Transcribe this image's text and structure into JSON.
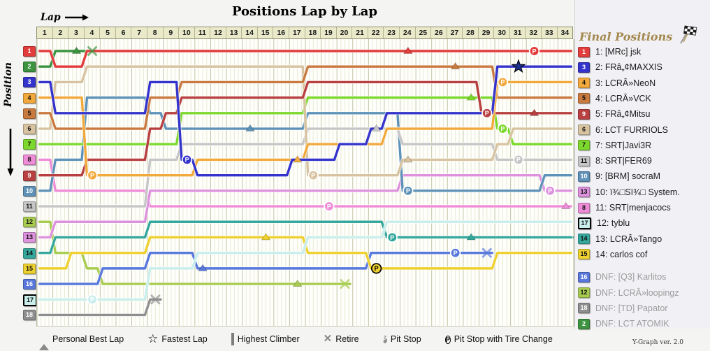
{
  "title": "Positions Lap by Lap",
  "watermark": "Y-Graph ver. 2.0",
  "axis": {
    "lap_label": "Lap",
    "position_label": "Position",
    "laps": [
      1,
      2,
      3,
      4,
      5,
      6,
      7,
      8,
      9,
      10,
      11,
      12,
      13,
      14,
      15,
      16,
      17,
      18,
      19,
      20,
      21,
      22,
      23,
      24,
      25,
      26,
      27,
      28,
      29,
      30,
      31,
      32,
      33,
      34
    ],
    "position_count": 18
  },
  "final_positions_header": "Final Positions",
  "legend": [
    {
      "icon": "personal-best-icon",
      "label": "Personal Best Lap"
    },
    {
      "icon": "fastest-lap-icon",
      "label": "Fastest Lap"
    },
    {
      "icon": "highest-climber-icon",
      "label": "Highest Climber"
    },
    {
      "icon": "retire-icon",
      "label": "Retire"
    },
    {
      "icon": "pit-stop-icon",
      "label": "Pit Stop"
    },
    {
      "icon": "pit-stop-tire-icon",
      "label": "Pit Stop with Tire Change"
    }
  ],
  "chart_data": {
    "type": "line",
    "x_label": "Lap",
    "y_label": "Position",
    "x_range": [
      1,
      34
    ],
    "y_range": [
      1,
      18
    ],
    "grid": true,
    "series": [
      {
        "key": "dg",
        "name": "[TD] Papator",
        "color": "#8f8f8f",
        "start": 18,
        "result": "DNF",
        "text_dark": false,
        "laps": [
          18,
          18,
          18,
          18,
          18,
          18,
          18,
          17
        ],
        "retire": [
          8,
          17
        ]
      },
      {
        "key": "yg",
        "name": "LCRÂ»loopingz",
        "color": "#a8cc50",
        "start": 12,
        "result": "DNF",
        "text_dark": true,
        "laps": [
          12,
          14,
          14,
          15,
          16,
          16,
          16,
          16,
          16,
          16,
          16,
          16,
          16,
          16,
          16,
          16,
          16,
          16,
          16,
          16
        ],
        "pb": [
          [
            17,
            16
          ]
        ],
        "retire": [
          20,
          16
        ]
      },
      {
        "key": "bv",
        "name": "[Q3] Karlitos",
        "color": "#5878dc",
        "start": 16,
        "result": "DNF",
        "text_dark": false,
        "laps": [
          16,
          16,
          16,
          16,
          15,
          15,
          15,
          14,
          14,
          14,
          15,
          15,
          15,
          15,
          15,
          15,
          15,
          15,
          15,
          15,
          15,
          14,
          14,
          14,
          14,
          14,
          14,
          14,
          14
        ],
        "pb": [
          [
            11,
            15
          ]
        ],
        "pit": [
          [
            27,
            14
          ]
        ],
        "retire": [
          29,
          14
        ]
      },
      {
        "key": "grn",
        "name": "LCT ATOMIK",
        "color": "#3c9440",
        "start": 2,
        "result": "DNF",
        "text_dark": false,
        "laps": [
          2,
          1,
          1,
          1
        ],
        "pb": [
          [
            3,
            1
          ]
        ],
        "retire": [
          4,
          1
        ]
      },
      {
        "key": "yel",
        "name": "carlos cof",
        "color": "#eed02f",
        "start": 15,
        "result": "14",
        "text_dark": true,
        "laps": [
          15,
          15,
          14,
          14,
          14,
          14,
          14,
          13,
          13,
          13,
          13,
          13,
          13,
          13,
          13,
          13,
          13,
          14,
          14,
          14,
          14,
          15,
          15,
          15,
          15,
          15,
          15,
          15,
          15,
          14,
          14,
          14,
          14,
          14
        ],
        "pb": [
          [
            15,
            13
          ]
        ],
        "tire": [
          [
            22,
            15
          ]
        ],
        "dashed_from": 31
      },
      {
        "key": "teal",
        "name": "LCRÂ»Tango",
        "color": "#34a89c",
        "start": 14,
        "result": "13",
        "text_dark": true,
        "laps": [
          14,
          13,
          13,
          13,
          13,
          13,
          13,
          12,
          12,
          12,
          12,
          12,
          12,
          12,
          12,
          12,
          12,
          12,
          12,
          12,
          12,
          12,
          13,
          13,
          13,
          13,
          13,
          13,
          13,
          13,
          13,
          13,
          13,
          13
        ],
        "pb": [
          [
            28,
            13
          ]
        ],
        "pit": [
          [
            23,
            13
          ]
        ],
        "dashed_from": 33
      },
      {
        "key": "pc",
        "name": "tyblu",
        "color": "#c9eeec",
        "start": 17,
        "result": "12",
        "text_dark": true,
        "highest_climber": true,
        "laps": [
          17,
          17,
          17,
          17,
          17,
          17,
          17,
          15,
          15,
          15,
          14,
          14,
          14,
          14,
          14,
          14,
          14,
          13,
          13,
          13,
          13,
          13,
          12,
          12,
          12,
          12,
          12,
          12,
          12,
          12,
          12,
          12,
          12,
          12
        ],
        "pit": [
          [
            4,
            17
          ]
        ],
        "dashed_from": 32
      },
      {
        "key": "pink",
        "name": "SRT|menjacocs",
        "color": "#ef8cd8",
        "start": 8,
        "result": "11",
        "text_dark": true,
        "laps": [
          8,
          10,
          10,
          10,
          10,
          10,
          10,
          11,
          11,
          11,
          11,
          11,
          11,
          11,
          11,
          11,
          11,
          11,
          11,
          11,
          11,
          11,
          11,
          11,
          11,
          11,
          11,
          11,
          11,
          11,
          11,
          11,
          11,
          11
        ],
        "pb": [
          [
            34,
            11
          ]
        ],
        "pit": [
          [
            19,
            11
          ]
        ]
      },
      {
        "key": "vio",
        "name": "ï¾□Sï¾□ System.",
        "color": "#de92de",
        "start": 13,
        "result": "10",
        "text_dark": true,
        "laps": [
          13,
          12,
          12,
          12,
          12,
          12,
          12,
          10,
          10,
          10,
          10,
          10,
          10,
          10,
          10,
          10,
          10,
          10,
          10,
          10,
          10,
          10,
          10,
          9,
          9,
          9,
          9,
          9,
          9,
          9,
          9,
          9,
          10,
          10
        ],
        "pit": [
          [
            33,
            10
          ]
        ]
      },
      {
        "key": "sb",
        "name": "[BRM] socraM",
        "color": "#5e92b8",
        "start": 10,
        "result": "9",
        "text_dark": false,
        "laps": [
          10,
          8,
          8,
          4,
          4,
          4,
          4,
          5,
          6,
          6,
          6,
          6,
          6,
          6,
          6,
          6,
          6,
          5,
          5,
          5,
          5,
          5,
          5,
          10,
          10,
          10,
          10,
          10,
          10,
          10,
          10,
          10,
          9,
          9
        ],
        "pb": [
          [
            14,
            6
          ]
        ],
        "pit": [
          [
            24,
            10
          ]
        ]
      },
      {
        "key": "gray",
        "name": "SRT|FER69",
        "color": "#c6c6c6",
        "start": 11,
        "result": "8",
        "text_dark": true,
        "laps": [
          11,
          11,
          11,
          11,
          11,
          11,
          11,
          8,
          8,
          7,
          7,
          7,
          7,
          7,
          7,
          7,
          7,
          6,
          6,
          6,
          6,
          6,
          6,
          7,
          7,
          7,
          7,
          7,
          7,
          8,
          8,
          8,
          8,
          8
        ],
        "pb": [
          [
            22,
            6
          ]
        ],
        "pit": [
          [
            31,
            8
          ]
        ]
      },
      {
        "key": "g7",
        "name": "SRT|Javi3R",
        "color": "#7cd82c",
        "start": 7,
        "result": "7",
        "text_dark": true,
        "laps": [
          7,
          7,
          7,
          7,
          7,
          7,
          7,
          7,
          7,
          5,
          5,
          5,
          5,
          5,
          5,
          5,
          5,
          4,
          4,
          4,
          4,
          4,
          4,
          4,
          4,
          4,
          4,
          4,
          4,
          6,
          7,
          7,
          7,
          7
        ],
        "pb": [
          [
            28,
            4
          ]
        ],
        "pit": [
          [
            30,
            6
          ]
        ]
      },
      {
        "key": "tan",
        "name": "LCT FURRIOLS",
        "color": "#d8c3a0",
        "start": 6,
        "result": "6",
        "text_dark": true,
        "laps": [
          6,
          3,
          3,
          2,
          2,
          2,
          2,
          2,
          2,
          2,
          2,
          2,
          2,
          2,
          2,
          2,
          2,
          9,
          9,
          9,
          9,
          9,
          9,
          8,
          8,
          8,
          8,
          8,
          8,
          7,
          6,
          6,
          6,
          6
        ],
        "pb": [
          [
            24,
            8
          ]
        ],
        "pit": [
          [
            18,
            9
          ]
        ]
      },
      {
        "key": "dkr",
        "name": "FRâ„¢Mitsu",
        "color": "#b84040",
        "start": 9,
        "result": "5",
        "text_dark": false,
        "laps": [
          9,
          9,
          9,
          8,
          8,
          8,
          8,
          6,
          5,
          4,
          4,
          4,
          4,
          4,
          4,
          4,
          4,
          3,
          3,
          3,
          3,
          3,
          3,
          3,
          3,
          3,
          3,
          3,
          5,
          5,
          5,
          5,
          5,
          5
        ],
        "pb": [
          [
            32,
            5
          ]
        ],
        "pit": [
          [
            29,
            5
          ]
        ]
      },
      {
        "key": "ob",
        "name": "LCRÂ»VCK",
        "color": "#c97a3f",
        "start": 5,
        "result": "4",
        "text_dark": true,
        "laps": [
          5,
          6,
          6,
          6,
          6,
          6,
          6,
          4,
          4,
          3,
          3,
          3,
          3,
          3,
          3,
          3,
          3,
          2,
          2,
          2,
          2,
          2,
          2,
          2,
          2,
          2,
          2,
          2,
          2,
          4,
          4,
          4,
          4,
          4
        ],
        "pb": [
          [
            27,
            2
          ]
        ]
      },
      {
        "key": "amb",
        "name": "LCRÂ»NeoN",
        "color": "#f2a93c",
        "start": 4,
        "result": "3",
        "text_dark": true,
        "laps": [
          4,
          4,
          4,
          9,
          9,
          9,
          9,
          9,
          9,
          9,
          8,
          8,
          8,
          8,
          8,
          8,
          8,
          7,
          7,
          7,
          7,
          7,
          6,
          6,
          6,
          6,
          6,
          6,
          6,
          3,
          3,
          3,
          3,
          3
        ],
        "pb": [
          [
            17,
            8
          ]
        ],
        "pit": [
          [
            4,
            9
          ],
          [
            30,
            3
          ]
        ]
      },
      {
        "key": "blue",
        "name": "FRâ„¢MAXXIS",
        "color": "#3434cc",
        "start": 3,
        "result": "2",
        "text_dark": false,
        "laps": [
          3,
          5,
          5,
          5,
          5,
          5,
          5,
          3,
          3,
          8,
          9,
          9,
          9,
          9,
          9,
          9,
          8,
          8,
          8,
          7,
          7,
          6,
          5,
          5,
          5,
          5,
          5,
          5,
          5,
          2,
          2,
          2,
          2,
          2
        ],
        "pit": [
          [
            10,
            8
          ]
        ],
        "star": [
          [
            31,
            2
          ]
        ]
      },
      {
        "key": "red",
        "name": "[MRc] jsk",
        "color": "#e23c3c",
        "start": 1,
        "result": "1",
        "text_dark": false,
        "laps": [
          1,
          2,
          2,
          1,
          1,
          1,
          1,
          1,
          1,
          1,
          1,
          1,
          1,
          1,
          1,
          1,
          1,
          1,
          1,
          1,
          1,
          1,
          1,
          1,
          1,
          1,
          1,
          1,
          1,
          1,
          1,
          1,
          1,
          1
        ],
        "pb": [
          [
            24,
            1
          ]
        ],
        "pit": [
          [
            32,
            1
          ]
        ]
      }
    ]
  },
  "results": [
    {
      "series": "red",
      "badge": "1",
      "label": "1: [MRc] jsk",
      "dnf": false
    },
    {
      "series": "blue",
      "badge": "3",
      "label": "2: FRâ„¢MAXXIS",
      "dnf": false
    },
    {
      "series": "amb",
      "badge": "4",
      "label": "3: LCRÂ»NeoN",
      "dnf": false
    },
    {
      "series": "ob",
      "badge": "5",
      "label": "4: LCRÂ»VCK",
      "dnf": false
    },
    {
      "series": "dkr",
      "badge": "9",
      "label": "5: FRâ„¢Mitsu",
      "dnf": false
    },
    {
      "series": "tan",
      "badge": "6",
      "label": "6: LCT FURRIOLS",
      "dnf": false
    },
    {
      "series": "g7",
      "badge": "7",
      "label": "7: SRT|Javi3R",
      "dnf": false
    },
    {
      "series": "gray",
      "badge": "11",
      "label": "8: SRT|FER69",
      "dnf": false
    },
    {
      "series": "sb",
      "badge": "10",
      "label": "9: [BRM] socraM",
      "dnf": false
    },
    {
      "series": "vio",
      "badge": "13",
      "label": "10: ï¾□Sï¾□ System.",
      "dnf": false
    },
    {
      "series": "pink",
      "badge": "8",
      "label": "11: SRT|menjacocs",
      "dnf": false
    },
    {
      "series": "pc",
      "badge": "17",
      "label": "12: tyblu",
      "dnf": false
    },
    {
      "series": "teal",
      "badge": "14",
      "label": "13: LCRÂ»Tango",
      "dnf": false
    },
    {
      "series": "yel",
      "badge": "15",
      "label": "14: carlos cof",
      "dnf": false
    },
    {
      "series": "bv",
      "badge": "16",
      "label": "DNF: [Q3] Karlitos",
      "dnf": true
    },
    {
      "series": "yg",
      "badge": "12",
      "label": "DNF: LCRÂ»loopingz",
      "dnf": true
    },
    {
      "series": "dg",
      "badge": "18",
      "label": "DNF: [TD] Papator",
      "dnf": true
    },
    {
      "series": "grn",
      "badge": "2",
      "label": "DNF: LCT ATOMIK",
      "dnf": true
    }
  ]
}
